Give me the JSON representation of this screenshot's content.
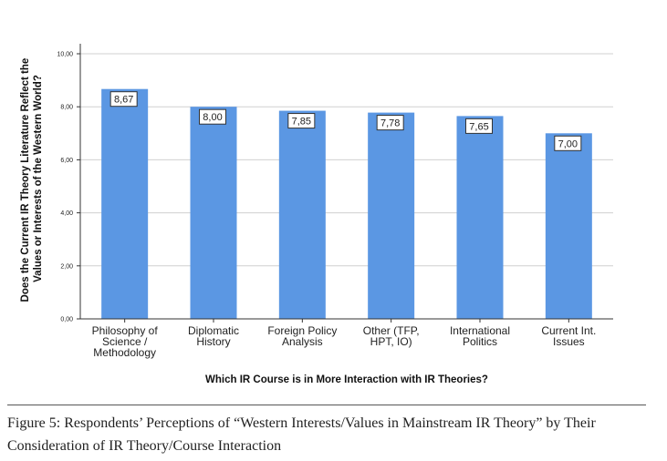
{
  "chart_data": {
    "type": "bar",
    "categories": [
      [
        "Philosophy of",
        "Science /",
        "Methodology"
      ],
      [
        "Diplomatic",
        "History"
      ],
      [
        "Foreign Policy",
        "Analysis"
      ],
      [
        "Other (TFP,",
        "HPT, IO)"
      ],
      [
        "International",
        "Politics"
      ],
      [
        "Current Int.",
        "Issues"
      ]
    ],
    "values": [
      8.67,
      8.0,
      7.85,
      7.78,
      7.65,
      7.0
    ],
    "value_labels": [
      "8,67",
      "8,00",
      "7,85",
      "7,78",
      "7,65",
      "7,00"
    ],
    "ylim": [
      0,
      10
    ],
    "yticks": [
      "0,00",
      "2,00",
      "4,00",
      "6,00",
      "8,00",
      "10,00"
    ],
    "ylabel_lines": [
      "Does the Current IR Theory Literature Reflect the",
      "Values or Interests of the Western World?"
    ],
    "xlabel": "Which IR Course is in More Interaction with IR Theories?",
    "bar_color": "#5b97e3",
    "grid": true,
    "legend": "none"
  },
  "caption": {
    "text": "Figure 5: Respondents’ Perceptions of “Western Interests/Values in Mainstream IR Theory” by Their Consideration of IR Theory/Course Interaction"
  }
}
